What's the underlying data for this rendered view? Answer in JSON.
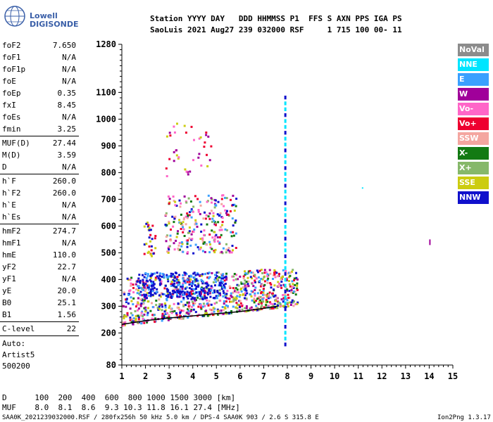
{
  "header": {
    "line1": "Station YYYY DAY   DDD HHMMSS P1  FFS S AXN PPS IGA PS",
    "line2": "SaoLuis 2021 Aug27 239 032000 RSF     1 715 100 00- 11"
  },
  "logo": {
    "brand": "Lowell",
    "product": "DIGISONDE"
  },
  "params": [
    {
      "name": "foF2",
      "value": "7.650"
    },
    {
      "name": "foF1",
      "value": "N/A"
    },
    {
      "name": "foF1p",
      "value": "N/A"
    },
    {
      "name": "foE",
      "value": "N/A"
    },
    {
      "name": "foEp",
      "value": "0.35"
    },
    {
      "name": "fxI",
      "value": "8.45"
    },
    {
      "name": "foEs",
      "value": "N/A"
    },
    {
      "name": "fmin",
      "value": "3.25"
    },
    {
      "sep": true
    },
    {
      "name": "MUF(D)",
      "value": "27.44"
    },
    {
      "name": "M(D)",
      "value": "3.59"
    },
    {
      "name": "D",
      "value": "N/A"
    },
    {
      "sep": true
    },
    {
      "name": "h`F",
      "value": "260.0"
    },
    {
      "name": "h`F2",
      "value": "260.0"
    },
    {
      "name": "h`E",
      "value": "N/A"
    },
    {
      "name": "h`Es",
      "value": "N/A"
    },
    {
      "sep": true
    },
    {
      "name": "hmF2",
      "value": "274.7"
    },
    {
      "name": "hmF1",
      "value": "N/A"
    },
    {
      "name": "hmE",
      "value": "110.0"
    },
    {
      "name": "yF2",
      "value": "22.7"
    },
    {
      "name": "yF1",
      "value": "N/A"
    },
    {
      "name": "yE",
      "value": "20.0"
    },
    {
      "name": "B0",
      "value": "25.1"
    },
    {
      "name": "B1",
      "value": "1.56"
    },
    {
      "sep": true
    },
    {
      "name": "C-level",
      "value": "22"
    },
    {
      "sep": true
    }
  ],
  "auto": [
    "Auto:",
    "Artist5",
    "500200"
  ],
  "legend": [
    {
      "label": "NoVal",
      "color": "#8c8c8c"
    },
    {
      "label": "NNE",
      "color": "#00e5ff"
    },
    {
      "label": "E",
      "color": "#3aa0ff"
    },
    {
      "label": "W",
      "color": "#a0009a"
    },
    {
      "label": "Vo-",
      "color": "#ff66c8"
    },
    {
      "label": "Vo+",
      "color": "#ee0030"
    },
    {
      "label": "SSW",
      "color": "#f4a6a0"
    },
    {
      "label": "X-",
      "color": "#137a13"
    },
    {
      "label": "X+",
      "color": "#86b86a"
    },
    {
      "label": "SSE",
      "color": "#cccc10"
    },
    {
      "label": "NNW",
      "color": "#1010cc"
    }
  ],
  "bottom": {
    "d_line": "D      100  200  400  600  800 1000 1500 3000 [km]",
    "muf_line": "MUF    8.0  8.1  8.6  9.3 10.3 11.8 16.1 27.4 [MHz]"
  },
  "footer": {
    "left": "SAA0K_2021239032000.RSF / 280fx256h 50 kHz 5.0 km / DPS-4 SAA0K 903 / 2.6 S 315.8 E",
    "right": "Ion2Png 1.3.17"
  },
  "chart_data": {
    "type": "scatter",
    "xlim": [
      1,
      15
    ],
    "ylim": [
      80,
      1280
    ],
    "x_ticks": [
      1,
      2,
      3,
      4,
      5,
      6,
      7,
      8,
      9,
      10,
      11,
      12,
      13,
      14,
      15
    ],
    "y_ticks": [
      80,
      200,
      300,
      400,
      500,
      600,
      700,
      800,
      900,
      1000,
      1100,
      1280
    ],
    "grid": false,
    "legend_position": "right",
    "trace_curve": {
      "x": [
        1.0,
        2.0,
        3.0,
        4.0,
        5.0,
        6.0,
        7.0,
        7.6
      ],
      "y": [
        232,
        246,
        256,
        264,
        272,
        280,
        292,
        300
      ]
    },
    "clusters": [
      {
        "name": "F-layer trace",
        "xrange": [
          1.0,
          8.4
        ],
        "yrange": [
          235,
          420
        ]
      },
      {
        "name": "Upper F spread",
        "xrange": [
          1.5,
          5.5
        ],
        "yrange": [
          320,
          440
        ]
      },
      {
        "name": "Multi-hop echoes",
        "xrange": [
          2.8,
          5.8
        ],
        "yrange": [
          500,
          720
        ]
      },
      {
        "name": "Sparse high echoes",
        "xrange": [
          2.8,
          4.8
        ],
        "yrange": [
          800,
          1000
        ]
      },
      {
        "name": "Vertical line 7.9 MHz",
        "xrange": [
          7.85,
          7.95
        ],
        "yrange": [
          150,
          1090
        ]
      },
      {
        "name": "Isolated 14 MHz",
        "xrange": [
          13.95,
          14.05
        ],
        "yrange": [
          540,
          560
        ]
      }
    ]
  }
}
